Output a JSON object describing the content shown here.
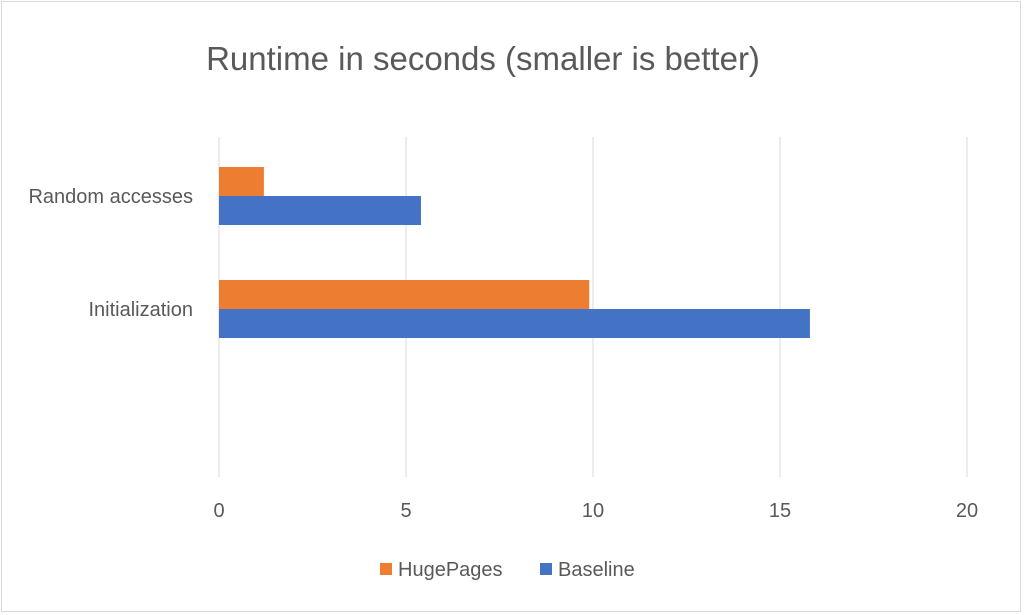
{
  "chart_data": {
    "type": "bar",
    "orientation": "horizontal",
    "title": "Runtime in seconds (smaller is better)",
    "xlabel": "",
    "ylabel": "",
    "categories": [
      "Random accesses",
      "Initialization"
    ],
    "series": [
      {
        "name": "HugePages",
        "color": "#ED7D31",
        "values": [
          1.2,
          9.9
        ]
      },
      {
        "name": "Baseline",
        "color": "#4472C4",
        "values": [
          5.4,
          15.8
        ]
      }
    ],
    "xlim": [
      0,
      20
    ],
    "x_ticks": [
      0,
      5,
      10,
      15,
      20
    ],
    "grid": true,
    "legend_position": "bottom"
  }
}
